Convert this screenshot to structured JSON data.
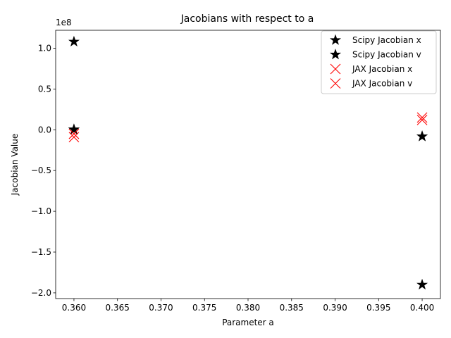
{
  "chart_data": {
    "type": "scatter",
    "title": "Jacobians with respect to a",
    "xlabel": "Parameter a",
    "ylabel": "Jacobian Value",
    "y_offset_label": "1e8",
    "y_scale": 100000000,
    "xlim": [
      0.3579,
      0.4021
    ],
    "ylim": [
      -207000000,
      122000000
    ],
    "x_ticks": [
      0.36,
      0.365,
      0.37,
      0.375,
      0.38,
      0.385,
      0.39,
      0.395,
      0.4
    ],
    "x_tick_labels": [
      "0.360",
      "0.365",
      "0.370",
      "0.375",
      "0.380",
      "0.385",
      "0.390",
      "0.395",
      "0.400"
    ],
    "y_ticks": [
      100000000,
      50000000,
      0,
      -50000000,
      -100000000,
      -150000000,
      -200000000
    ],
    "y_tick_labels": [
      "1.0",
      "0.5",
      "0.0",
      "−0.5",
      "−1.0",
      "−1.5",
      "−2.0"
    ],
    "grid": false,
    "legend_position": "top-right",
    "series": [
      {
        "name": "Scipy Jacobian x",
        "marker": "star",
        "color": "#000000",
        "points": [
          [
            0.36,
            108000000
          ],
          [
            0.36,
            100000
          ],
          [
            0.4,
            -190000000
          ],
          [
            0.4,
            -8000000
          ]
        ]
      },
      {
        "name": "Scipy Jacobian v",
        "marker": "star",
        "color": "#000000",
        "points": [
          [
            0.36,
            500000
          ],
          [
            0.4,
            -8200000
          ]
        ]
      },
      {
        "name": "JAX Jacobian x",
        "marker": "x",
        "color": "#ff0000",
        "points": [
          [
            0.36,
            -5000000
          ],
          [
            0.4,
            15000000
          ]
        ]
      },
      {
        "name": "JAX Jacobian v",
        "marker": "x",
        "color": "#ff0000",
        "points": [
          [
            0.36,
            -9000000
          ],
          [
            0.4,
            12000000
          ]
        ]
      }
    ]
  }
}
